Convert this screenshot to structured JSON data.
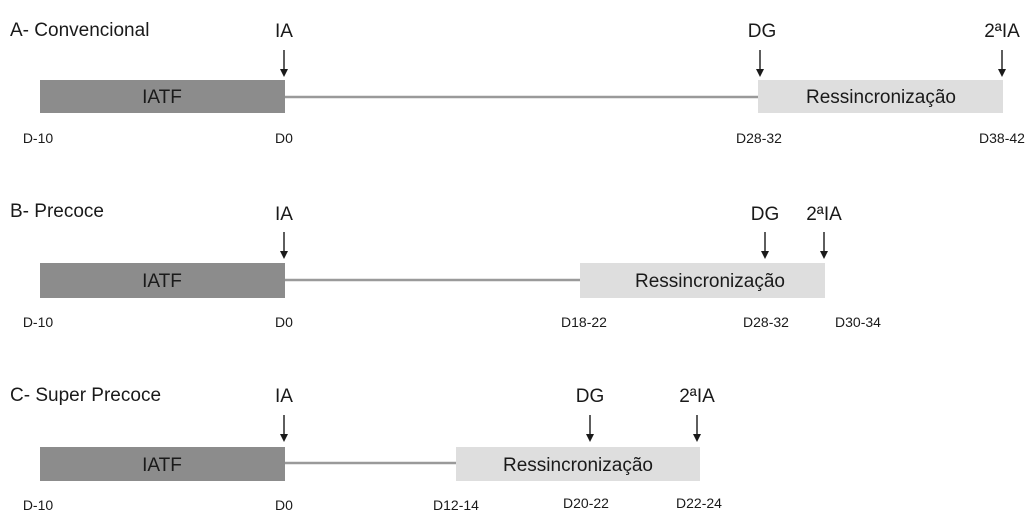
{
  "colors": {
    "iatf_bar": "#8c8c8c",
    "resync_bar": "#dedede",
    "timeline": "#9a9a9a",
    "text": "#1a1a1a"
  },
  "rows": [
    {
      "title": "A- Convencional",
      "iatf_label": "IATF",
      "resync_label": "Ressincronização",
      "events": [
        {
          "label": "IA"
        },
        {
          "label": "DG"
        },
        {
          "label": "2ªIA"
        }
      ],
      "days": [
        "D-10",
        "D0",
        "D28-32",
        "D38-42"
      ]
    },
    {
      "title": "B- Precoce",
      "iatf_label": "IATF",
      "resync_label": "Ressincronização",
      "events": [
        {
          "label": "IA"
        },
        {
          "label": "DG"
        },
        {
          "label": "2ªIA"
        }
      ],
      "days": [
        "D-10",
        "D0",
        "D18-22",
        "D28-32",
        "D30-34"
      ]
    },
    {
      "title": "C- Super Precoce",
      "iatf_label": "IATF",
      "resync_label": "Ressincronização",
      "events": [
        {
          "label": "IA"
        },
        {
          "label": "DG"
        },
        {
          "label": "2ªIA"
        }
      ],
      "days": [
        "D-10",
        "D0",
        "D12-14",
        "D20-22",
        "D22-24"
      ]
    }
  ]
}
